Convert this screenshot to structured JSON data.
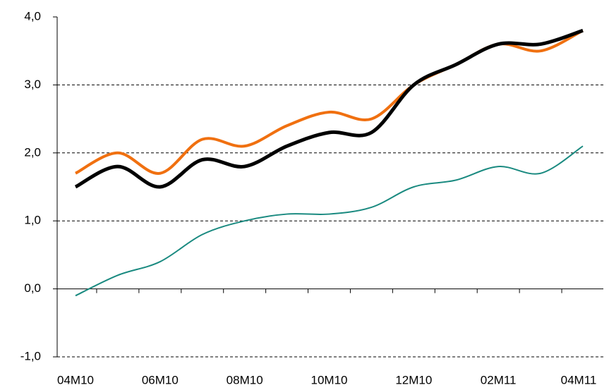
{
  "chart_data": {
    "type": "line",
    "categories": [
      "04M10",
      null,
      "06M10",
      null,
      "08M10",
      null,
      "10M10",
      null,
      "12M10",
      null,
      "02M11",
      null,
      "04M11"
    ],
    "series": [
      {
        "color": "#1a8a80",
        "values": [
          -0.1,
          0.2,
          0.4,
          0.8,
          1.0,
          1.1,
          1.1,
          1.2,
          1.5,
          1.6,
          1.8,
          1.7,
          2.1
        ]
      },
      {
        "color": "#f07010",
        "values": [
          1.7,
          2.0,
          1.7,
          2.2,
          2.1,
          2.4,
          2.6,
          2.5,
          3.0,
          3.3,
          3.6,
          3.5,
          3.8
        ]
      },
      {
        "color": "#000000",
        "values": [
          1.5,
          1.8,
          1.5,
          1.9,
          1.8,
          2.1,
          2.3,
          2.3,
          3.0,
          3.3,
          3.6,
          3.6,
          3.8
        ]
      }
    ],
    "ylim": [
      -1,
      4
    ],
    "yticks": [
      {
        "value": -1,
        "label": "-1,0"
      },
      {
        "value": 0,
        "label": "0,0"
      },
      {
        "value": 1,
        "label": "1,0"
      },
      {
        "value": 2,
        "label": "2,0"
      },
      {
        "value": 3,
        "label": "3,0"
      },
      {
        "value": 4,
        "label": "4,0"
      }
    ],
    "grid": true
  }
}
